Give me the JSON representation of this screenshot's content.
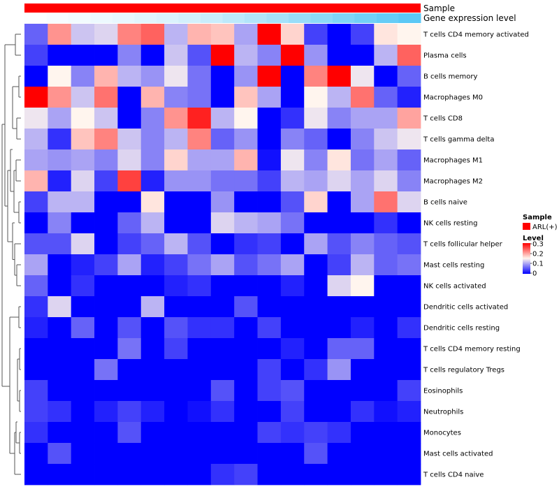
{
  "chart_data": {
    "type": "heatmap",
    "annotations": {
      "sample_label": "Sample",
      "expression_label": "Gene expression level",
      "sample_color": "#ff0000",
      "expression_levels": [
        0.02,
        0.05,
        0.08,
        0.11,
        0.14,
        0.18,
        0.22,
        0.27,
        0.33,
        0.4,
        0.47,
        0.54,
        0.62,
        0.7,
        0.78,
        0.86,
        0.93,
        1.0
      ]
    },
    "rows": [
      "T cells CD4 memory activated",
      "Plasma cells",
      "B cells memory",
      "Macrophages M0",
      "T cells CD8",
      "T cells gamma delta",
      "Macrophages M1",
      "Macrophages M2",
      "B cells naive",
      "NK cells resting",
      "T cells follicular helper",
      "Mast cells resting",
      "NK cells activated",
      "Dendritic cells activated",
      "Dendritic cells resting",
      "T cells CD4 memory resting",
      "T cells regulatory  Tregs",
      "Eosinophils",
      "Neutrophils",
      "Monocytes",
      "Mast cells activated",
      "T cells CD4 naive"
    ],
    "values": [
      [
        0.06,
        0.21,
        0.12,
        0.13,
        0.22,
        0.24,
        0.11,
        0.19,
        0.18,
        0.1,
        0.3,
        0.17,
        0.04,
        0.0,
        0.04,
        0.16,
        0.15
      ],
      [
        0.04,
        0.0,
        0.0,
        0.0,
        0.08,
        0.0,
        0.12,
        0.05,
        0.3,
        0.11,
        0.08,
        0.3,
        0.09,
        0.0,
        0.0,
        0.11,
        0.24
      ],
      [
        0.0,
        0.15,
        0.08,
        0.19,
        0.11,
        0.09,
        0.14,
        0.07,
        0.0,
        0.09,
        0.3,
        0.0,
        0.22,
        0.3,
        0.14,
        0.0,
        0.06
      ],
      [
        0.3,
        0.21,
        0.12,
        0.23,
        0.0,
        0.19,
        0.08,
        0.07,
        0.0,
        0.18,
        0.1,
        0.0,
        0.15,
        0.11,
        0.23,
        0.06,
        0.02
      ],
      [
        0.14,
        0.1,
        0.15,
        0.12,
        0.0,
        0.08,
        0.21,
        0.28,
        0.11,
        0.15,
        0.0,
        0.03,
        0.14,
        0.08,
        0.1,
        0.1,
        0.2
      ],
      [
        0.11,
        0.03,
        0.18,
        0.22,
        0.12,
        0.08,
        0.11,
        0.22,
        0.06,
        0.09,
        0.0,
        0.08,
        0.06,
        0.0,
        0.08,
        0.12,
        0.14
      ],
      [
        0.1,
        0.09,
        0.1,
        0.08,
        0.13,
        0.08,
        0.17,
        0.1,
        0.1,
        0.19,
        0.01,
        0.14,
        0.08,
        0.16,
        0.07,
        0.1,
        0.06
      ],
      [
        0.19,
        0.02,
        0.13,
        0.04,
        0.26,
        0.02,
        0.09,
        0.09,
        0.07,
        0.07,
        0.04,
        0.11,
        0.1,
        0.13,
        0.1,
        0.13,
        0.08
      ],
      [
        0.04,
        0.11,
        0.11,
        0.0,
        0.0,
        0.16,
        0.0,
        0.0,
        0.09,
        0.0,
        0.0,
        0.05,
        0.17,
        0.0,
        0.1,
        0.23,
        0.13
      ],
      [
        0.0,
        0.08,
        0.0,
        0.0,
        0.06,
        0.11,
        0.0,
        0.0,
        0.13,
        0.11,
        0.1,
        0.07,
        0.0,
        0.0,
        0.0,
        0.03,
        0.0
      ],
      [
        0.05,
        0.05,
        0.13,
        0.0,
        0.04,
        0.06,
        0.11,
        0.05,
        0.0,
        0.03,
        0.04,
        0.0,
        0.1,
        0.05,
        0.08,
        0.06,
        0.05
      ],
      [
        0.1,
        0.0,
        0.02,
        0.04,
        0.1,
        0.02,
        0.04,
        0.07,
        0.1,
        0.05,
        0.07,
        0.1,
        0.0,
        0.04,
        0.11,
        0.06,
        0.07
      ],
      [
        0.06,
        0.0,
        0.03,
        0.0,
        0.0,
        0.0,
        0.02,
        0.03,
        0.0,
        0.0,
        0.0,
        0.02,
        0.0,
        0.13,
        0.15,
        0.0,
        0.0
      ],
      [
        0.03,
        0.13,
        0.0,
        0.0,
        0.0,
        0.11,
        0.0,
        0.0,
        0.0,
        0.05,
        0.0,
        0.0,
        0.0,
        0.0,
        0.0,
        0.0,
        0.0
      ],
      [
        0.02,
        0.0,
        0.06,
        0.0,
        0.05,
        0.0,
        0.05,
        0.03,
        0.03,
        0.0,
        0.04,
        0.0,
        0.0,
        0.0,
        0.02,
        0.0,
        0.03
      ],
      [
        0.0,
        0.0,
        0.0,
        0.0,
        0.07,
        0.0,
        0.04,
        0.0,
        0.0,
        0.0,
        0.0,
        0.02,
        0.0,
        0.06,
        0.06,
        0.0,
        0.0
      ],
      [
        0.0,
        0.0,
        0.0,
        0.07,
        0.0,
        0.0,
        0.0,
        0.0,
        0.0,
        0.0,
        0.04,
        0.0,
        0.03,
        0.09,
        0.0,
        0.0,
        0.0
      ],
      [
        0.04,
        0.0,
        0.0,
        0.0,
        0.0,
        0.0,
        0.0,
        0.0,
        0.05,
        0.0,
        0.04,
        0.05,
        0.0,
        0.0,
        0.0,
        0.0,
        0.04
      ],
      [
        0.04,
        0.03,
        0.0,
        0.02,
        0.04,
        0.02,
        0.0,
        0.01,
        0.03,
        0.0,
        0.0,
        0.04,
        0.0,
        0.0,
        0.03,
        0.01,
        0.02
      ],
      [
        0.03,
        0.0,
        0.0,
        0.0,
        0.05,
        0.0,
        0.0,
        0.0,
        0.0,
        0.0,
        0.04,
        0.03,
        0.04,
        0.03,
        0.0,
        0.0,
        0.0
      ],
      [
        0.0,
        0.05,
        0.0,
        0.0,
        0.0,
        0.0,
        0.0,
        0.0,
        0.0,
        0.0,
        0.0,
        0.0,
        0.05,
        0.0,
        0.0,
        0.0,
        0.0
      ],
      [
        0.0,
        0.0,
        0.0,
        0.0,
        0.0,
        0.0,
        0.0,
        0.0,
        0.03,
        0.04,
        0.0,
        0.0,
        0.0,
        0.0,
        0.0,
        0.0,
        0.0
      ]
    ],
    "color_scale": {
      "min": 0,
      "mid": 0.15,
      "max": 0.3,
      "low": "#0000ff",
      "middle": "#fff5ee",
      "high": "#ff0000"
    },
    "legend": {
      "sample_title": "Sample",
      "sample_entry": "ARL(+)",
      "level_title": "Level",
      "ticks": [
        "0.3",
        "0.2",
        "0.1",
        "0"
      ]
    },
    "dendrogram": "rows"
  }
}
